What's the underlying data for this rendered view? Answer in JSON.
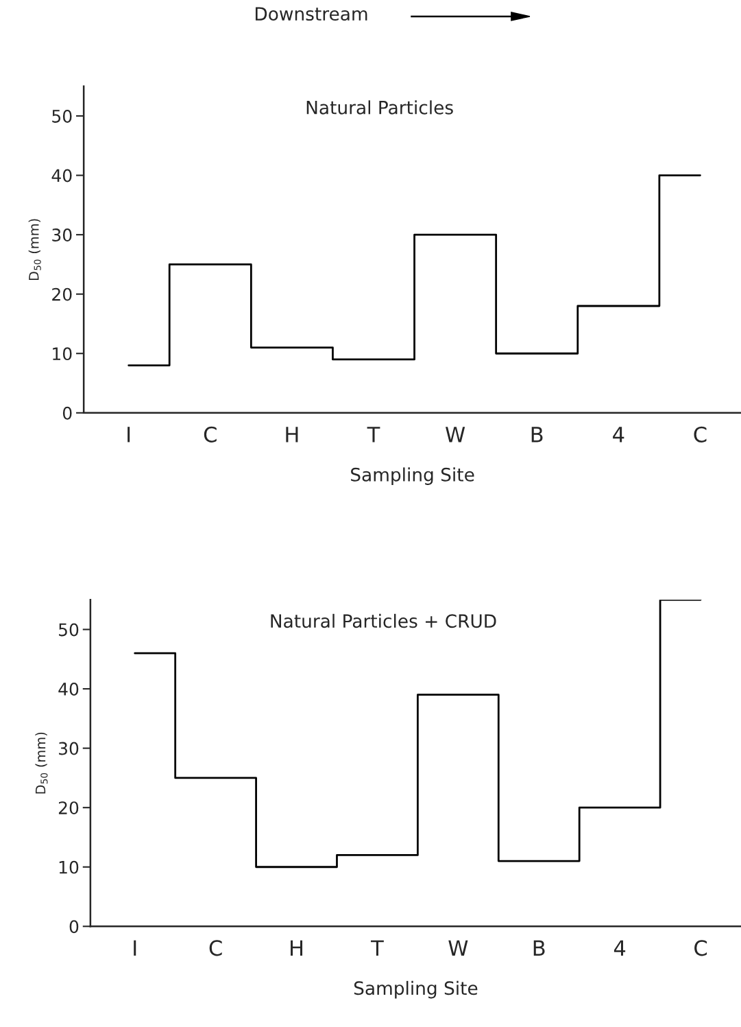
{
  "chart_data": [
    {
      "type": "step",
      "title": "Natural Particles",
      "xlabel": "Sampling Site",
      "ylabel": "D$_{50}$ (mm)",
      "annotations": [
        "Downstream"
      ],
      "categories": [
        "I",
        "C",
        "H",
        "T",
        "W",
        "B",
        "4",
        "C"
      ],
      "values": [
        8,
        25,
        11,
        9,
        30,
        10,
        18,
        40
      ],
      "color": "#000000",
      "ylim": [
        0,
        55
      ],
      "yticks": [
        0,
        10,
        20,
        30,
        40,
        50
      ],
      "grid": false,
      "legend": false
    },
    {
      "type": "step",
      "title": "Natural Particles + CRUD",
      "xlabel": "Sampling Site",
      "ylabel": "D$_{50}$ (mm)",
      "categories": [
        "I",
        "C",
        "H",
        "T",
        "W",
        "B",
        "4",
        "C"
      ],
      "values": [
        46,
        25,
        10,
        12,
        39,
        11,
        20,
        55
      ],
      "color": "#000000",
      "ylim": [
        0,
        55
      ],
      "yticks": [
        0,
        10,
        20,
        30,
        40,
        50
      ],
      "grid": false,
      "legend": false
    }
  ]
}
